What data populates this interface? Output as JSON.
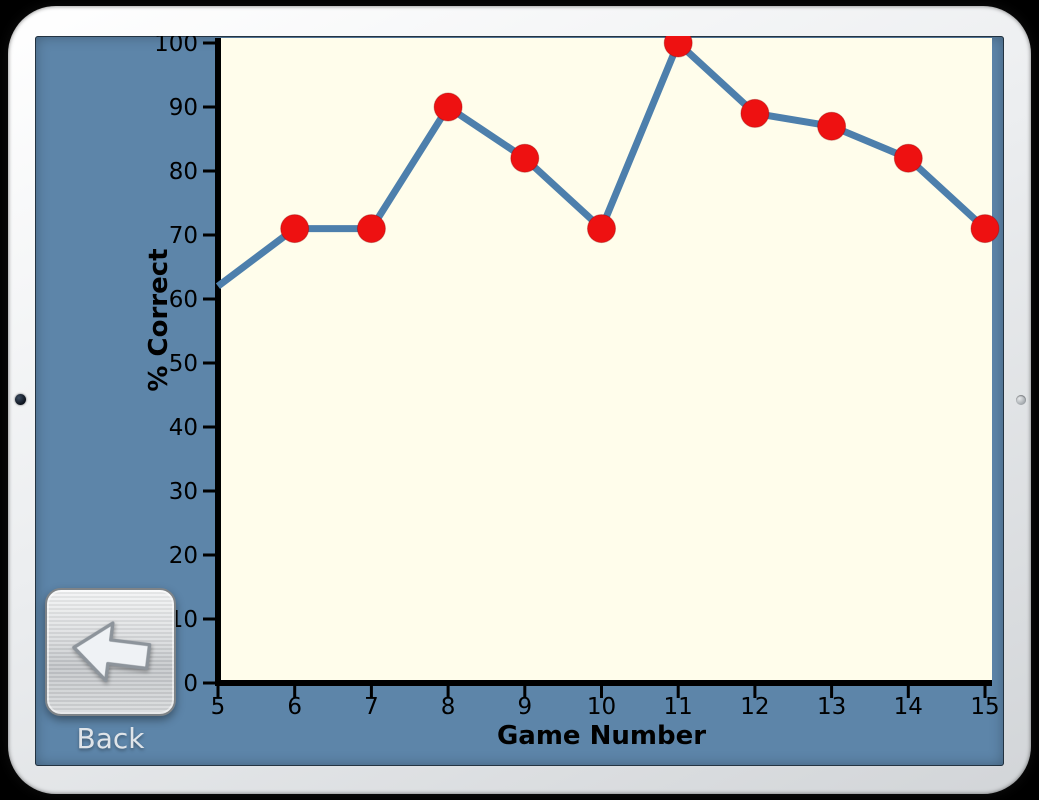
{
  "device": {
    "camera": "front-camera",
    "side_button": "side-button"
  },
  "screen": {
    "background_color": "#5d85a9",
    "back_button": {
      "label": "Back"
    }
  },
  "chart_data": {
    "type": "line",
    "title": "",
    "xlabel": "Game Number",
    "ylabel": "% Correct",
    "x": [
      5,
      6,
      7,
      8,
      9,
      10,
      11,
      12,
      13,
      14,
      15
    ],
    "values": [
      62,
      71,
      71,
      90,
      82,
      71,
      100,
      89,
      87,
      82,
      71
    ],
    "markers": [
      false,
      true,
      true,
      true,
      true,
      true,
      true,
      true,
      true,
      true,
      true
    ],
    "x_ticks": [
      "5",
      "6",
      "7",
      "8",
      "9",
      "10",
      "11",
      "12",
      "13",
      "14",
      "15"
    ],
    "y_ticks": [
      "0",
      "10",
      "20",
      "30",
      "40",
      "50",
      "60",
      "70",
      "80",
      "90",
      "100"
    ],
    "xlim": [
      5,
      15
    ],
    "ylim": [
      0,
      100
    ],
    "grid": false,
    "legend": false,
    "line_color": "#4d7fac",
    "marker_color": "#ee1111",
    "plot_background": "#fffdeb",
    "axis_color": "#000000"
  }
}
